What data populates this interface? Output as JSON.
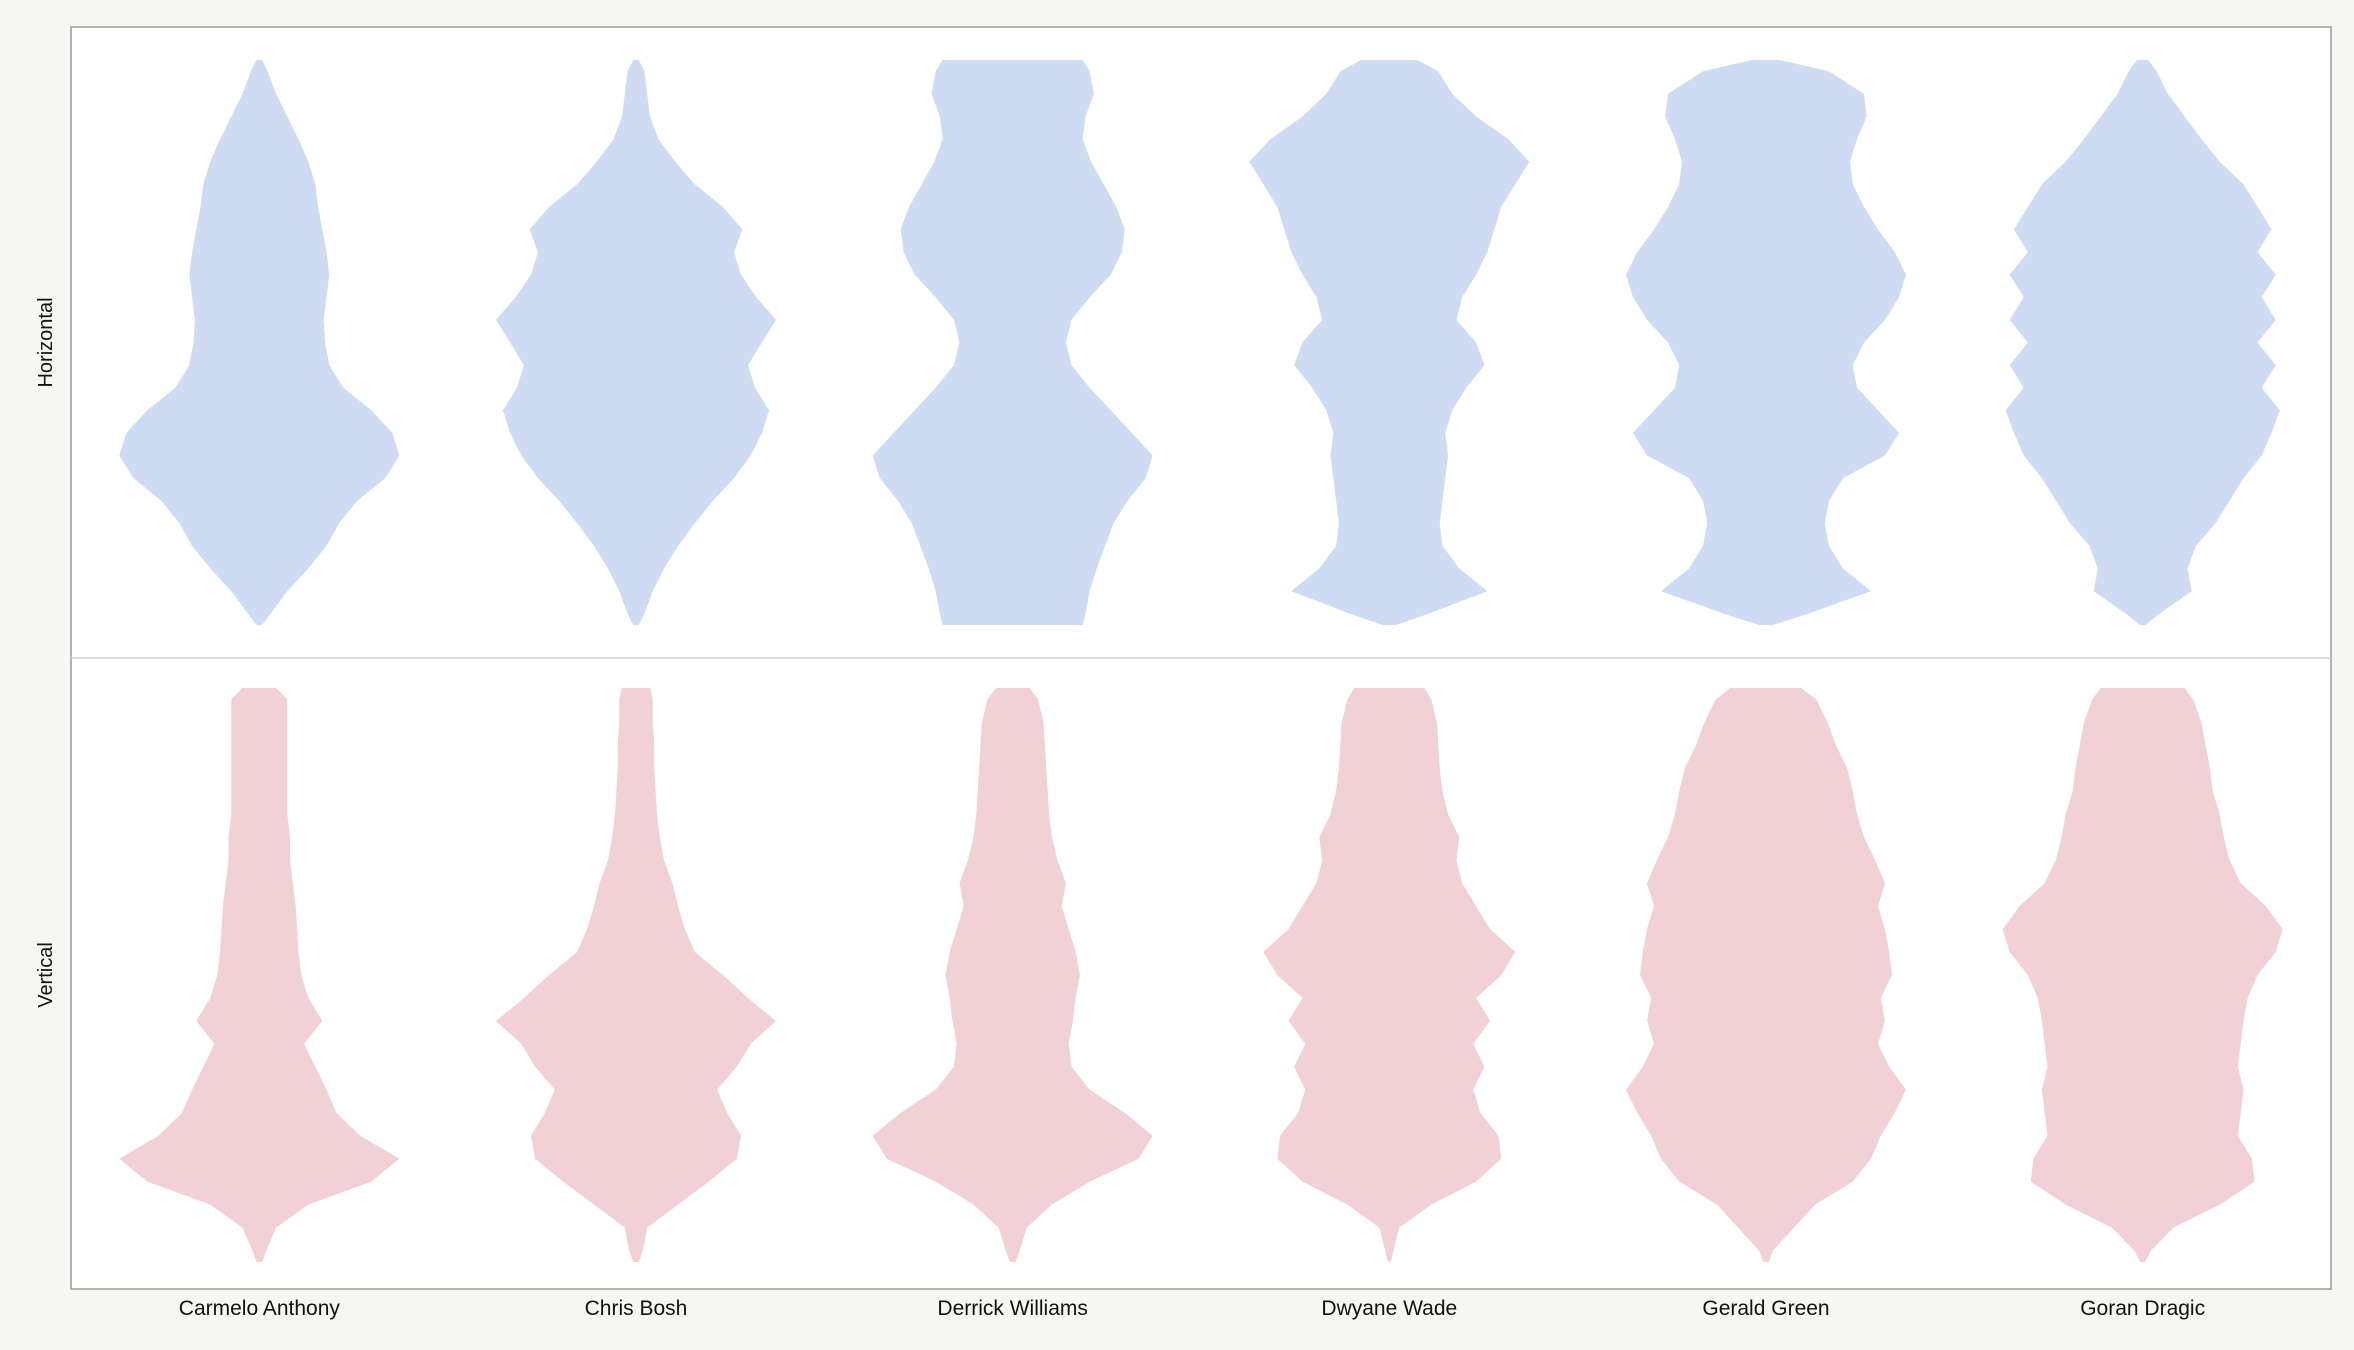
{
  "chart_data": {
    "type": "violin",
    "categories": [
      "Carmelo Anthony",
      "Chris Bosh",
      "Derrick Williams",
      "Dwyane Wade",
      "Gerald Green",
      "Goran Dragic"
    ],
    "rows": [
      "Horizontal",
      "Vertical"
    ],
    "grid": false,
    "legend": "none",
    "colors": {
      "Horizontal": "#cfdbf3",
      "Vertical": "#f1d0d6"
    },
    "series": [
      {
        "panel": "Horizontal",
        "violins": [
          {
            "category": "Carmelo Anthony",
            "y": [
              0,
              0.02,
              0.06,
              0.1,
              0.14,
              0.18,
              0.22,
              0.26,
              0.3,
              0.34,
              0.38,
              0.42,
              0.46,
              0.5,
              0.54,
              0.58,
              0.62,
              0.66,
              0.7,
              0.74,
              0.78,
              0.82,
              0.86,
              0.9,
              0.94,
              0.98,
              1
            ],
            "density": [
              0.02,
              0.08,
              0.2,
              0.35,
              0.48,
              0.57,
              0.7,
              0.9,
              1,
              0.95,
              0.8,
              0.6,
              0.5,
              0.47,
              0.46,
              0.48,
              0.5,
              0.48,
              0.45,
              0.42,
              0.4,
              0.35,
              0.28,
              0.2,
              0.12,
              0.06,
              0.02
            ]
          },
          {
            "category": "Chris Bosh",
            "y": [
              0,
              0.02,
              0.06,
              0.1,
              0.14,
              0.18,
              0.22,
              0.26,
              0.3,
              0.34,
              0.38,
              0.42,
              0.46,
              0.5,
              0.54,
              0.58,
              0.62,
              0.66,
              0.7,
              0.74,
              0.78,
              0.82,
              0.86,
              0.9,
              0.94,
              0.98,
              1
            ],
            "density": [
              0.02,
              0.06,
              0.12,
              0.2,
              0.3,
              0.42,
              0.55,
              0.7,
              0.82,
              0.9,
              0.95,
              0.85,
              0.8,
              0.9,
              1,
              0.86,
              0.75,
              0.7,
              0.76,
              0.62,
              0.42,
              0.28,
              0.16,
              0.1,
              0.08,
              0.06,
              0.02
            ]
          },
          {
            "category": "Derrick Williams",
            "y": [
              0,
              0.02,
              0.06,
              0.1,
              0.14,
              0.18,
              0.22,
              0.26,
              0.3,
              0.34,
              0.38,
              0.42,
              0.46,
              0.5,
              0.54,
              0.58,
              0.62,
              0.66,
              0.7,
              0.74,
              0.78,
              0.82,
              0.86,
              0.9,
              0.94,
              0.98,
              1
            ],
            "density": [
              0.5,
              0.52,
              0.55,
              0.6,
              0.66,
              0.72,
              0.82,
              0.95,
              1,
              0.85,
              0.7,
              0.55,
              0.42,
              0.38,
              0.42,
              0.55,
              0.7,
              0.78,
              0.8,
              0.74,
              0.65,
              0.56,
              0.5,
              0.52,
              0.58,
              0.55,
              0.5
            ]
          },
          {
            "category": "Dwyane Wade",
            "y": [
              0,
              0.02,
              0.06,
              0.1,
              0.14,
              0.18,
              0.22,
              0.26,
              0.3,
              0.34,
              0.38,
              0.42,
              0.46,
              0.5,
              0.54,
              0.58,
              0.62,
              0.66,
              0.7,
              0.74,
              0.78,
              0.82,
              0.86,
              0.9,
              0.94,
              0.98,
              1
            ],
            "density": [
              0.05,
              0.28,
              0.7,
              0.5,
              0.38,
              0.36,
              0.38,
              0.4,
              0.42,
              0.4,
              0.45,
              0.55,
              0.68,
              0.62,
              0.48,
              0.52,
              0.62,
              0.7,
              0.75,
              0.8,
              0.9,
              1,
              0.85,
              0.62,
              0.45,
              0.35,
              0.2
            ]
          },
          {
            "category": "Gerald Green",
            "y": [
              0,
              0.02,
              0.06,
              0.1,
              0.14,
              0.18,
              0.22,
              0.26,
              0.3,
              0.34,
              0.38,
              0.42,
              0.46,
              0.5,
              0.54,
              0.58,
              0.62,
              0.66,
              0.7,
              0.74,
              0.78,
              0.82,
              0.86,
              0.9,
              0.94,
              0.98,
              1
            ],
            "density": [
              0.05,
              0.3,
              0.75,
              0.55,
              0.45,
              0.42,
              0.45,
              0.55,
              0.85,
              0.95,
              0.8,
              0.65,
              0.62,
              0.7,
              0.85,
              0.95,
              1,
              0.92,
              0.8,
              0.7,
              0.62,
              0.6,
              0.65,
              0.72,
              0.7,
              0.45,
              0.1
            ]
          },
          {
            "category": "Goran Dragic",
            "y": [
              0,
              0.02,
              0.06,
              0.1,
              0.14,
              0.18,
              0.22,
              0.26,
              0.3,
              0.34,
              0.38,
              0.42,
              0.46,
              0.5,
              0.54,
              0.58,
              0.62,
              0.66,
              0.7,
              0.74,
              0.78,
              0.82,
              0.86,
              0.9,
              0.94,
              0.98,
              1
            ],
            "density": [
              0.02,
              0.12,
              0.35,
              0.32,
              0.38,
              0.52,
              0.62,
              0.72,
              0.85,
              0.92,
              0.98,
              0.85,
              0.95,
              0.82,
              0.95,
              0.85,
              0.95,
              0.82,
              0.92,
              0.82,
              0.72,
              0.55,
              0.42,
              0.3,
              0.18,
              0.1,
              0.04
            ]
          }
        ]
      },
      {
        "panel": "Vertical",
        "violins": [
          {
            "category": "Carmelo Anthony",
            "y": [
              0,
              0.02,
              0.06,
              0.1,
              0.14,
              0.18,
              0.22,
              0.26,
              0.3,
              0.34,
              0.38,
              0.42,
              0.46,
              0.5,
              0.54,
              0.58,
              0.62,
              0.66,
              0.7,
              0.74,
              0.78,
              0.82,
              0.86,
              0.9,
              0.94,
              0.98,
              1
            ],
            "density": [
              0.02,
              0.05,
              0.12,
              0.35,
              0.8,
              1,
              0.72,
              0.55,
              0.48,
              0.4,
              0.32,
              0.45,
              0.35,
              0.3,
              0.28,
              0.27,
              0.26,
              0.24,
              0.22,
              0.22,
              0.2,
              0.2,
              0.2,
              0.2,
              0.2,
              0.2,
              0.12
            ]
          },
          {
            "category": "Chris Bosh",
            "y": [
              0,
              0.02,
              0.06,
              0.1,
              0.14,
              0.18,
              0.22,
              0.26,
              0.3,
              0.34,
              0.38,
              0.42,
              0.46,
              0.5,
              0.54,
              0.58,
              0.62,
              0.66,
              0.7,
              0.74,
              0.78,
              0.82,
              0.86,
              0.9,
              0.94,
              0.98,
              1
            ],
            "density": [
              0.02,
              0.05,
              0.08,
              0.3,
              0.52,
              0.72,
              0.75,
              0.65,
              0.58,
              0.72,
              0.82,
              1,
              0.8,
              0.62,
              0.42,
              0.35,
              0.3,
              0.26,
              0.2,
              0.17,
              0.15,
              0.14,
              0.13,
              0.13,
              0.12,
              0.12,
              0.1
            ]
          },
          {
            "category": "Derrick Williams",
            "y": [
              0,
              0.02,
              0.06,
              0.1,
              0.14,
              0.18,
              0.22,
              0.26,
              0.3,
              0.34,
              0.38,
              0.42,
              0.46,
              0.5,
              0.54,
              0.58,
              0.62,
              0.66,
              0.7,
              0.74,
              0.78,
              0.82,
              0.86,
              0.9,
              0.94,
              0.98,
              1
            ],
            "density": [
              0.02,
              0.05,
              0.1,
              0.28,
              0.55,
              0.9,
              1,
              0.8,
              0.55,
              0.42,
              0.4,
              0.43,
              0.45,
              0.48,
              0.45,
              0.4,
              0.35,
              0.38,
              0.32,
              0.28,
              0.26,
              0.25,
              0.24,
              0.23,
              0.22,
              0.18,
              0.12
            ]
          },
          {
            "category": "Dwyane Wade",
            "y": [
              0,
              0.02,
              0.06,
              0.1,
              0.14,
              0.18,
              0.22,
              0.26,
              0.3,
              0.34,
              0.38,
              0.42,
              0.46,
              0.5,
              0.54,
              0.58,
              0.62,
              0.66,
              0.7,
              0.74,
              0.78,
              0.82,
              0.86,
              0.9,
              0.94,
              0.98,
              1
            ],
            "density": [
              0.01,
              0.03,
              0.07,
              0.3,
              0.62,
              0.8,
              0.78,
              0.65,
              0.6,
              0.68,
              0.6,
              0.72,
              0.62,
              0.8,
              0.9,
              0.72,
              0.62,
              0.52,
              0.48,
              0.5,
              0.42,
              0.38,
              0.36,
              0.35,
              0.34,
              0.3,
              0.25
            ]
          },
          {
            "category": "Gerald Green",
            "y": [
              0,
              0.02,
              0.06,
              0.1,
              0.14,
              0.18,
              0.22,
              0.26,
              0.3,
              0.34,
              0.38,
              0.42,
              0.46,
              0.5,
              0.54,
              0.58,
              0.62,
              0.66,
              0.7,
              0.74,
              0.78,
              0.82,
              0.86,
              0.9,
              0.94,
              0.98,
              1
            ],
            "density": [
              0.02,
              0.05,
              0.2,
              0.35,
              0.62,
              0.75,
              0.82,
              0.92,
              1,
              0.88,
              0.8,
              0.85,
              0.82,
              0.9,
              0.88,
              0.85,
              0.8,
              0.85,
              0.78,
              0.7,
              0.65,
              0.62,
              0.58,
              0.5,
              0.44,
              0.36,
              0.25
            ]
          },
          {
            "category": "Goran Dragic",
            "y": [
              0,
              0.02,
              0.06,
              0.1,
              0.14,
              0.18,
              0.22,
              0.26,
              0.3,
              0.34,
              0.38,
              0.42,
              0.46,
              0.5,
              0.54,
              0.58,
              0.62,
              0.66,
              0.7,
              0.74,
              0.78,
              0.82,
              0.86,
              0.9,
              0.94,
              0.98,
              1
            ],
            "density": [
              0.02,
              0.06,
              0.22,
              0.55,
              0.8,
              0.78,
              0.68,
              0.7,
              0.72,
              0.68,
              0.7,
              0.72,
              0.75,
              0.82,
              0.95,
              1,
              0.88,
              0.7,
              0.62,
              0.58,
              0.55,
              0.5,
              0.48,
              0.45,
              0.42,
              0.36,
              0.3
            ]
          }
        ]
      }
    ]
  }
}
